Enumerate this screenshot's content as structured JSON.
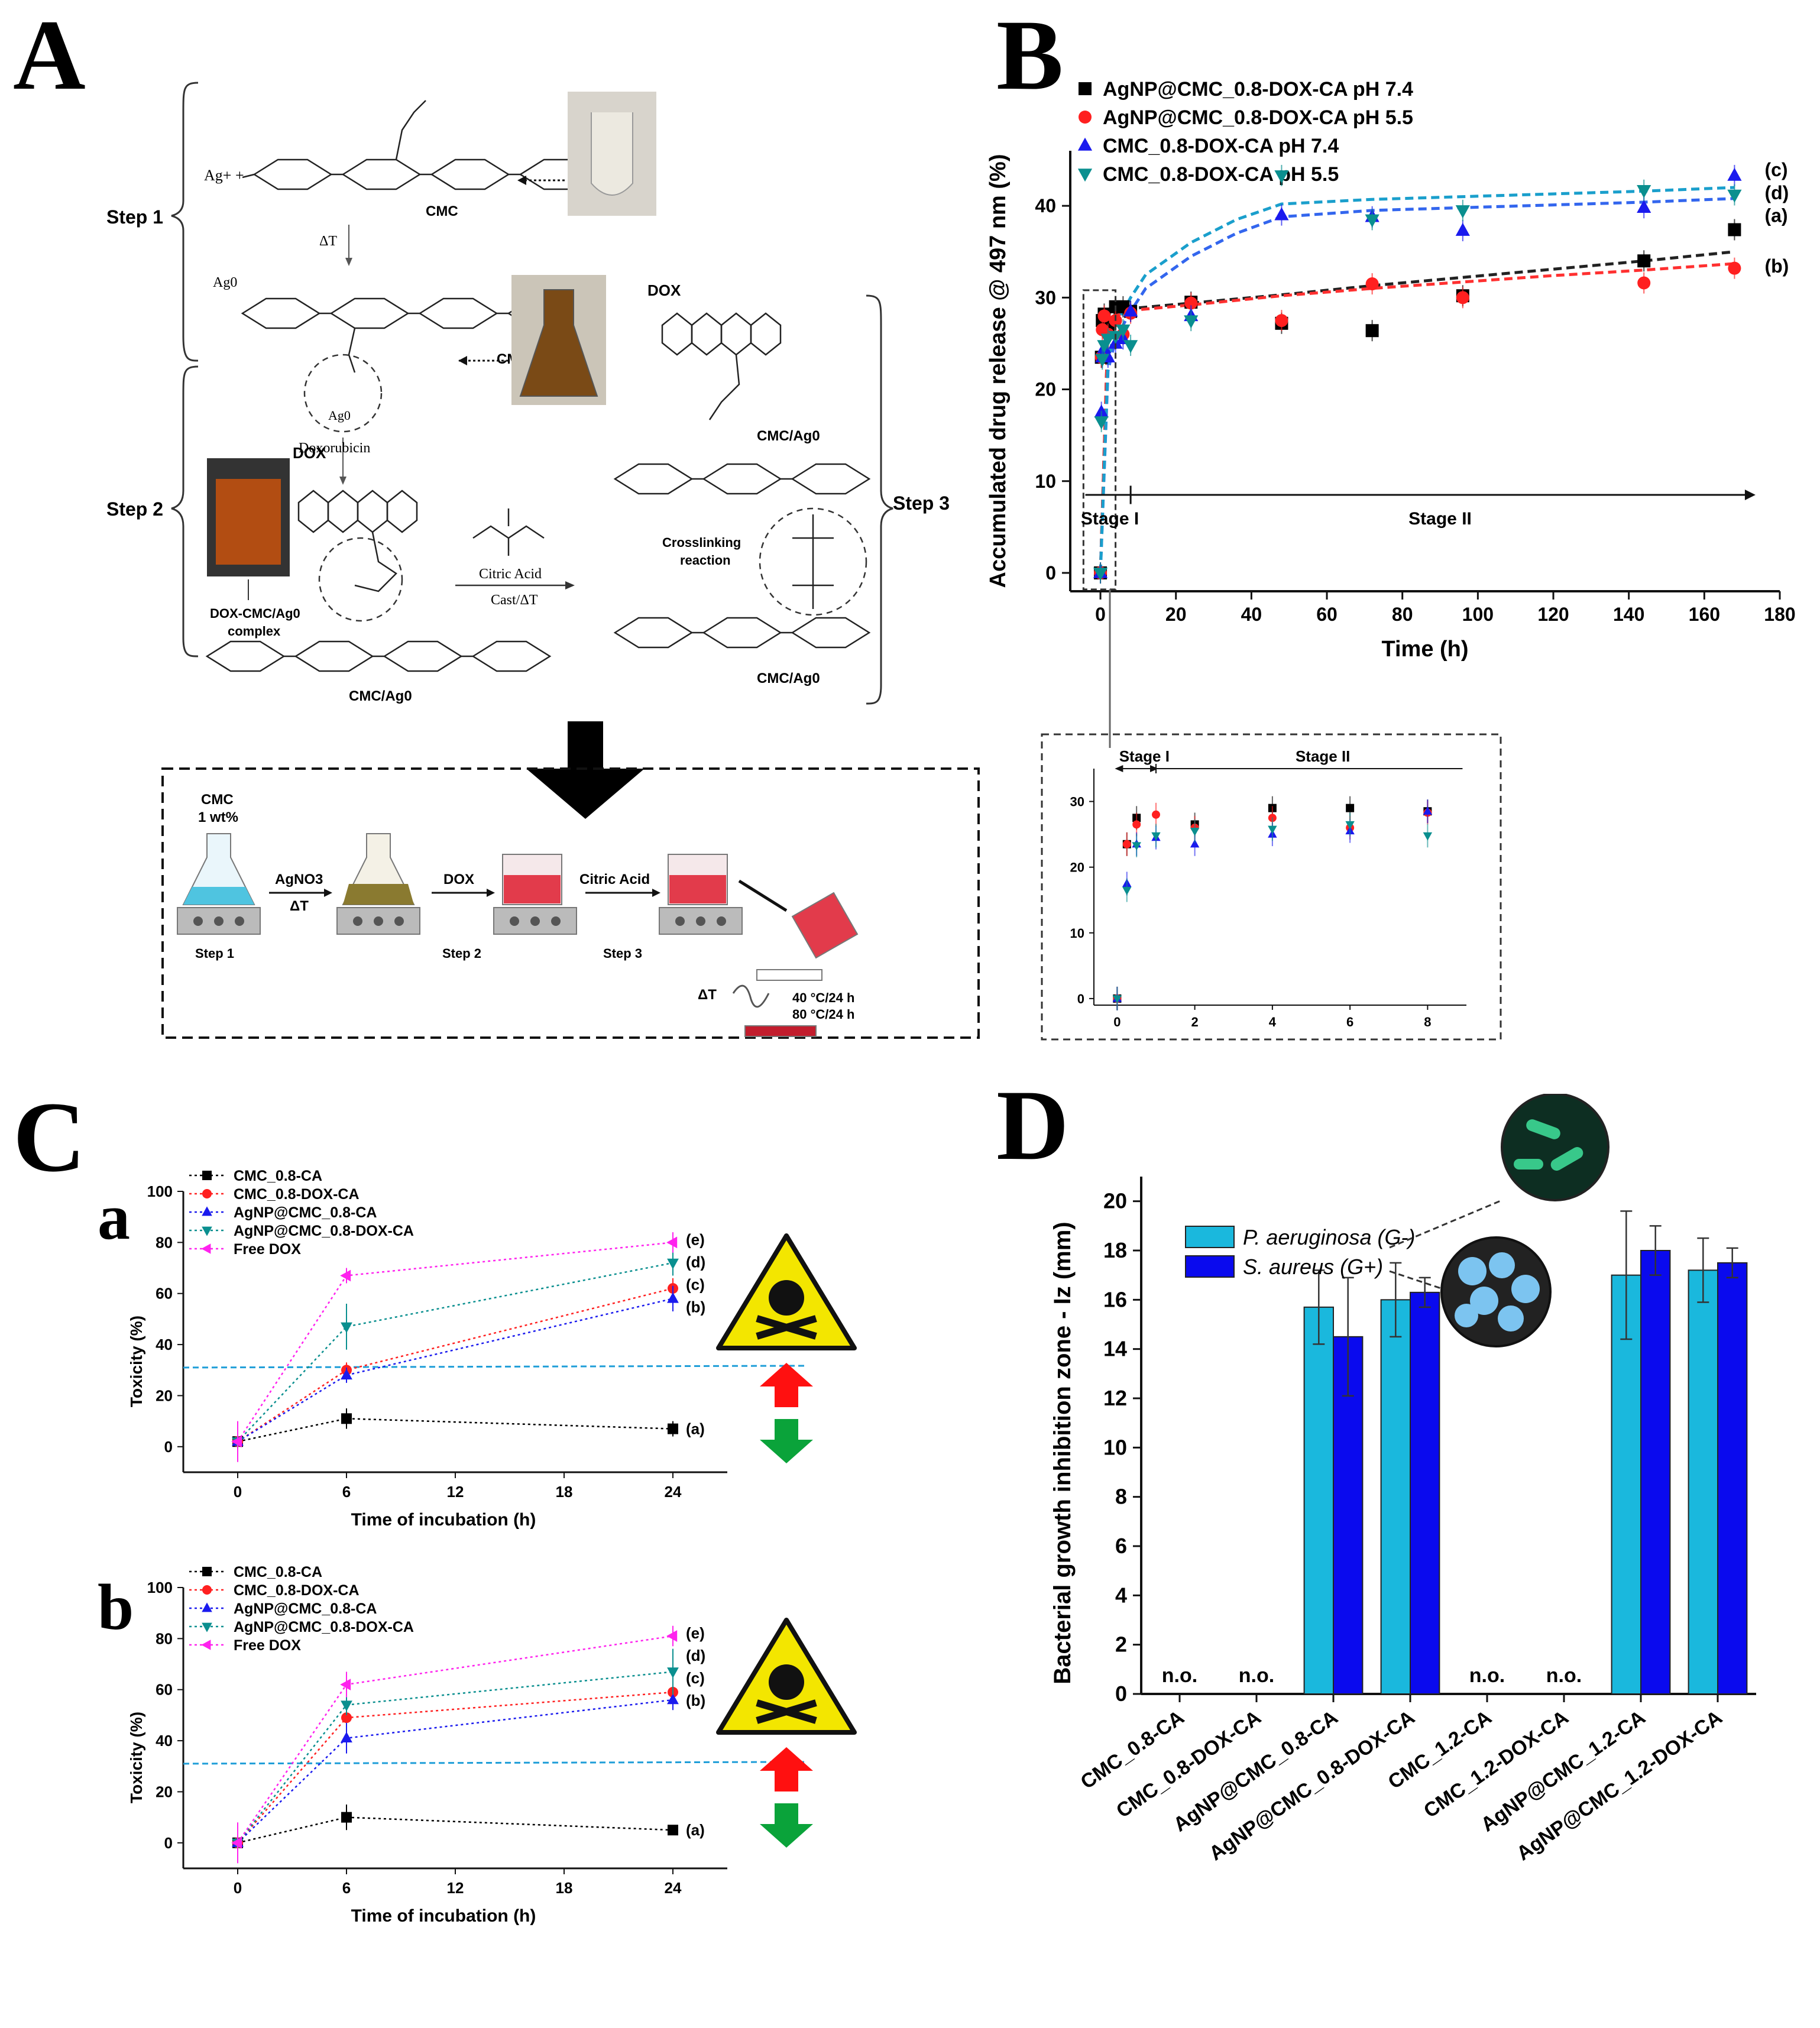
{
  "panels": {
    "A": {
      "letter": "A",
      "scheme": {
        "step1": "Step 1",
        "step2": "Step 2",
        "step3": "Step 3",
        "ag_plus": "Ag+ +",
        "ag0": "Ag0",
        "cmc": "CMC",
        "cmc_ag0": "CMC/Ag0",
        "delta_t": "ΔT",
        "doxorubicin": "Doxorubicin",
        "dox": "DOX",
        "dox_complex_1": "DOX-CMC/Ag0",
        "dox_complex_2": "complex",
        "crosslinking_1": "Crosslinking",
        "crosslinking_2": "reaction",
        "citric_acid": "Citric Acid",
        "cast_delta_t": "Cast/ΔT"
      },
      "process": {
        "cmc_label": "CMC",
        "cmc_conc": "1 wt%",
        "agno3": "AgNO3",
        "delta_t": "ΔT",
        "dox": "DOX",
        "citric_acid": "Citric Acid",
        "step1": "Step 1",
        "step2": "Step 2",
        "step3": "Step 3",
        "delta_t2": "ΔT",
        "temp1": "40 °C/24 h",
        "temp2": "80 °C/24 h"
      }
    },
    "B": {
      "letter": "B"
    },
    "C": {
      "letter": "C",
      "sub_a": "a",
      "sub_b": "b"
    },
    "D": {
      "letter": "D"
    }
  },
  "chart_data": [
    {
      "id": "B-main",
      "type": "scatter",
      "xlabel": "Time (h)",
      "ylabel": "Accumulated drug release @ 497 nm (%)",
      "xlim": [
        -8,
        180
      ],
      "ylim": [
        -2,
        46
      ],
      "xticks": [
        0,
        20,
        40,
        60,
        80,
        100,
        120,
        140,
        160,
        180
      ],
      "yticks": [
        0,
        10,
        20,
        30,
        40
      ],
      "stage1": "Stage I",
      "stage2": "Stage II",
      "series": [
        {
          "name": "AgNP@CMC_0.8-DOX-CA pH 7.4",
          "color": "#000000",
          "marker": "square",
          "label": "(a)",
          "x": [
            0,
            0.25,
            0.5,
            1,
            2,
            4,
            6,
            8,
            24,
            48,
            72,
            96,
            144,
            168
          ],
          "y": [
            0,
            23.5,
            27.5,
            28.2,
            26.5,
            29,
            29,
            28.5,
            29.5,
            27.2,
            26.4,
            30.2,
            34,
            37.4
          ],
          "fit_x": [
            0,
            2,
            4,
            8,
            24,
            48,
            72,
            96,
            120,
            144,
            168
          ],
          "fit_y": [
            0,
            27,
            28.3,
            28.8,
            29.4,
            30.3,
            31.3,
            32.2,
            33.1,
            34,
            35
          ]
        },
        {
          "name": "AgNP@CMC_0.8-DOX-CA pH 5.5",
          "color": "#ff2020",
          "marker": "circle",
          "label": "(b)",
          "x": [
            0,
            0.25,
            0.5,
            1,
            2,
            4,
            6,
            8,
            24,
            48,
            72,
            96,
            144,
            168
          ],
          "y": [
            0,
            23.5,
            26.5,
            28,
            26,
            27.5,
            26,
            28.3,
            29.4,
            27.5,
            31.5,
            30,
            31.6,
            33.2
          ],
          "fit_x": [
            0,
            2,
            4,
            8,
            24,
            48,
            72,
            96,
            120,
            144,
            168
          ],
          "fit_y": [
            0,
            26.8,
            28,
            28.6,
            29.2,
            30.2,
            31,
            31.7,
            32.4,
            33,
            33.7
          ]
        },
        {
          "name": "CMC_0.8-DOX-CA pH 7.4",
          "color": "#1a1aee",
          "marker": "triangle-up",
          "label": "(c)",
          "x": [
            0,
            0.25,
            0.5,
            1,
            2,
            4,
            6,
            8,
            24,
            48,
            72,
            96,
            144,
            168
          ],
          "y": [
            0,
            17.5,
            23.5,
            24.5,
            23.5,
            25,
            25.5,
            28.5,
            28,
            39,
            38.8,
            37.3,
            39.8,
            43.3
          ],
          "fit_x": [
            0,
            2,
            4,
            8,
            12,
            24,
            36,
            48,
            72,
            96,
            120,
            144,
            168
          ],
          "fit_y": [
            0,
            22,
            25.5,
            28.5,
            31,
            34.5,
            37,
            38.8,
            39.5,
            39.8,
            40.1,
            40.4,
            40.8
          ]
        },
        {
          "name": "CMC_0.8-DOX-CA pH 5.5",
          "color": "#0a8f8f",
          "marker": "triangle-down",
          "label": "(d)",
          "x": [
            0,
            0.25,
            0.5,
            1,
            2,
            4,
            6,
            8,
            24,
            48,
            72,
            96,
            144,
            168
          ],
          "y": [
            0,
            16.5,
            23.3,
            24.8,
            25.5,
            25.8,
            26.5,
            24.8,
            27.5,
            43.3,
            38.5,
            39.5,
            41.7,
            41.2
          ],
          "fit_x": [
            0,
            2,
            4,
            8,
            12,
            24,
            36,
            48,
            72,
            96,
            120,
            144,
            168
          ],
          "fit_y": [
            0,
            23,
            27,
            30,
            32.5,
            36,
            38.5,
            40.2,
            40.7,
            41,
            41.3,
            41.6,
            42
          ]
        }
      ]
    },
    {
      "id": "B-inset",
      "type": "scatter",
      "xlim": [
        -0.6,
        9
      ],
      "ylim": [
        -1,
        35
      ],
      "xticks": [
        0,
        2,
        4,
        6,
        8
      ],
      "yticks": [
        0,
        10,
        20,
        30
      ],
      "stage1": "Stage I",
      "stage2": "Stage II",
      "series": [
        {
          "name": "AgNP@CMC_0.8-DOX-CA pH 7.4",
          "color": "#000000",
          "marker": "square",
          "x": [
            0,
            0.25,
            0.5,
            2,
            4,
            6,
            8
          ],
          "y": [
            0,
            23.5,
            27.5,
            26.5,
            29,
            29,
            28.5
          ]
        },
        {
          "name": "AgNP@CMC_0.8-DOX-CA pH 5.5",
          "color": "#ff2020",
          "marker": "circle",
          "x": [
            0,
            0.25,
            0.5,
            1,
            2,
            4,
            6,
            8
          ],
          "y": [
            0,
            23.5,
            26.5,
            28,
            26,
            27.5,
            26,
            28.3
          ]
        },
        {
          "name": "CMC_0.8-DOX-CA pH 7.4",
          "color": "#1a1aee",
          "marker": "triangle-up",
          "x": [
            0,
            0.25,
            0.5,
            1,
            2,
            4,
            6,
            8
          ],
          "y": [
            0,
            17.5,
            23.5,
            24.5,
            23.5,
            25,
            25.5,
            28.5
          ]
        },
        {
          "name": "CMC_0.8-DOX-CA pH 5.5",
          "color": "#0a8f8f",
          "marker": "triangle-down",
          "x": [
            0,
            0.25,
            0.5,
            1,
            2,
            4,
            6,
            8
          ],
          "y": [
            0,
            16.5,
            23.3,
            24.8,
            25.5,
            25.8,
            26.5,
            24.8
          ]
        }
      ]
    },
    {
      "id": "C-a",
      "type": "line",
      "xlabel": "Time of incubation (h)",
      "ylabel": "Toxicity (%)",
      "xlim": [
        -3,
        27
      ],
      "ylim": [
        -10,
        100
      ],
      "xticks": [
        0,
        6,
        12,
        18,
        24
      ],
      "yticks": [
        0,
        20,
        40,
        60,
        80,
        100
      ],
      "threshold": 31,
      "series": [
        {
          "name": "CMC_0.8-CA",
          "color": "#000000",
          "marker": "square",
          "label": "(a)",
          "x": [
            0,
            6,
            24
          ],
          "y": [
            2,
            11,
            7
          ],
          "err": [
            3,
            4,
            3
          ]
        },
        {
          "name": "CMC_0.8-DOX-CA",
          "color": "#ff2020",
          "marker": "circle",
          "label": "(c)",
          "x": [
            0,
            6,
            24
          ],
          "y": [
            2,
            30,
            62
          ],
          "err": [
            3,
            3,
            4
          ]
        },
        {
          "name": "AgNP@CMC_0.8-CA",
          "color": "#1a1aee",
          "marker": "triangle-up",
          "label": "(b)",
          "x": [
            0,
            6,
            24
          ],
          "y": [
            2,
            28,
            58
          ],
          "err": [
            3,
            3,
            5
          ]
        },
        {
          "name": "AgNP@CMC_0.8-DOX-CA",
          "color": "#0a8f8f",
          "marker": "triangle-down",
          "label": "(d)",
          "x": [
            0,
            6,
            24
          ],
          "y": [
            2,
            47,
            72
          ],
          "err": [
            3,
            9,
            5
          ]
        },
        {
          "name": "Free DOX",
          "color": "#ff22ee",
          "marker": "triangle-left",
          "label": "(e)",
          "x": [
            0,
            6,
            24
          ],
          "y": [
            2,
            67,
            80
          ],
          "err": [
            8,
            3,
            4
          ]
        }
      ]
    },
    {
      "id": "C-b",
      "type": "line",
      "xlabel": "Time of incubation (h)",
      "ylabel": "Toxicity (%)",
      "xlim": [
        -3,
        27
      ],
      "ylim": [
        -10,
        100
      ],
      "xticks": [
        0,
        6,
        12,
        18,
        24
      ],
      "yticks": [
        0,
        20,
        40,
        60,
        80,
        100
      ],
      "threshold": 31,
      "series": [
        {
          "name": "CMC_0.8-CA",
          "color": "#000000",
          "marker": "square",
          "label": "(a)",
          "x": [
            0,
            6,
            24
          ],
          "y": [
            0,
            10,
            5
          ],
          "err": [
            3,
            5,
            1
          ]
        },
        {
          "name": "CMC_0.8-DOX-CA",
          "color": "#ff2020",
          "marker": "circle",
          "label": "(c)",
          "x": [
            0,
            6,
            24
          ],
          "y": [
            0,
            49,
            59
          ],
          "err": [
            3,
            5,
            3
          ]
        },
        {
          "name": "AgNP@CMC_0.8-CA",
          "color": "#1a1aee",
          "marker": "triangle-up",
          "label": "(b)",
          "x": [
            0,
            6,
            24
          ],
          "y": [
            0,
            41,
            56
          ],
          "err": [
            3,
            6,
            4
          ]
        },
        {
          "name": "AgNP@CMC_0.8-DOX-CA",
          "color": "#0a8f8f",
          "marker": "triangle-down",
          "label": "(d)",
          "x": [
            0,
            6,
            24
          ],
          "y": [
            0,
            54,
            67
          ],
          "err": [
            3,
            4,
            9
          ]
        },
        {
          "name": "Free DOX",
          "color": "#ff22ee",
          "marker": "triangle-left",
          "label": "(e)",
          "x": [
            0,
            6,
            24
          ],
          "y": [
            0,
            62,
            81
          ],
          "err": [
            8,
            5,
            4
          ]
        }
      ]
    },
    {
      "id": "D",
      "type": "bar",
      "ylabel": "Bacterial growth inhibition zone - Iz (mm)",
      "ylim": [
        0,
        21
      ],
      "yticks": [
        0,
        2,
        4,
        6,
        8,
        10,
        12,
        14,
        16,
        18,
        20
      ],
      "categories": [
        "CMC_0.8-CA",
        "CMC_0.8-DOX-CA",
        "AgNP@CMC_0.8-CA",
        "AgNP@CMC_0.8-DOX-CA",
        "CMC_1.2-CA",
        "CMC_1.2-DOX-CA",
        "AgNP@CMC_1.2-CA",
        "AgNP@CMC_1.2-DOX-CA"
      ],
      "na_label": "n.o.",
      "series": [
        {
          "name": "P. aeruginosa (G-)",
          "color": "#1ab8dd",
          "values": [
            null,
            null,
            15.7,
            16.0,
            null,
            null,
            17.0,
            17.2
          ],
          "err": [
            0,
            0,
            1.5,
            1.5,
            0,
            0,
            2.6,
            1.3
          ]
        },
        {
          "name": "S. aureus (G+)",
          "color": "#0a0aee",
          "values": [
            null,
            null,
            14.5,
            16.3,
            null,
            null,
            18.0,
            17.5
          ],
          "err": [
            0,
            0,
            2.4,
            0.6,
            0,
            0,
            1.0,
            0.6
          ]
        }
      ]
    }
  ]
}
